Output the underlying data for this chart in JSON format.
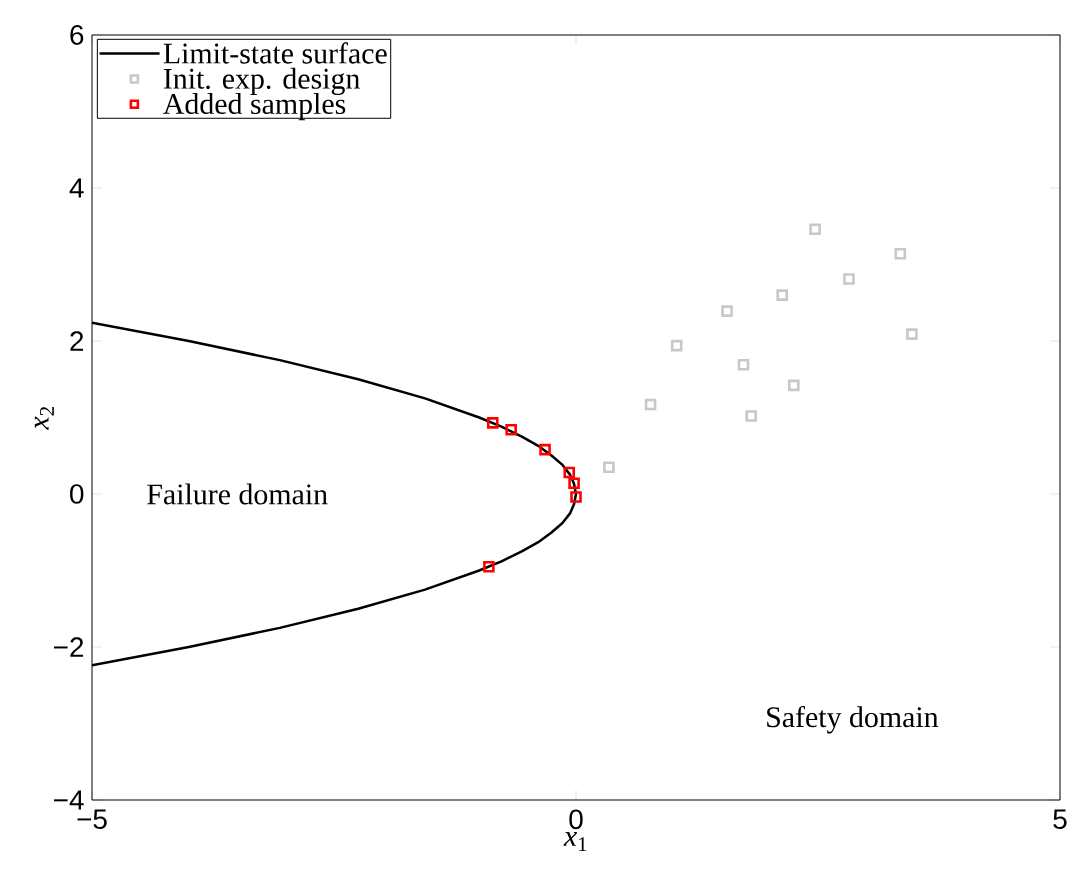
{
  "chart_data": {
    "type": "scatter",
    "xlabel": "*x*$_{1}$",
    "ylabel": "*x*$_{2}$",
    "xlim": [
      -5,
      5
    ],
    "ylim": [
      -4,
      6
    ],
    "xticks": [
      {
        "value": -5,
        "label": "−5"
      },
      0,
      5
    ],
    "yticks": [
      {
        "value": -4,
        "label": "−4"
      },
      {
        "value": -2,
        "label": "−2"
      },
      0,
      2,
      4,
      6
    ],
    "grid": false,
    "legend": "top left",
    "annotations": [
      "Failure domain",
      "Safety domain"
    ],
    "series": [
      {
        "name": "Limit-state surface",
        "type": "line",
        "color": "#000000",
        "marker": "none",
        "line_style": "solid",
        "x": [
          -5.0,
          -4.0,
          -3.06,
          -2.25,
          -1.56,
          -1.0,
          -0.77,
          -0.56,
          -0.39,
          -0.25,
          -0.14,
          -0.06,
          -0.02,
          0,
          -0.02,
          -0.06,
          -0.14,
          -0.25,
          -0.39,
          -0.56,
          -0.77,
          -1.0,
          -1.56,
          -2.25,
          -3.06,
          -4.0,
          -5.0
        ],
        "values": [
          -2.24,
          -2.0,
          -1.75,
          -1.5,
          -1.25,
          -1.0,
          -0.88,
          -0.75,
          -0.63,
          -0.5,
          -0.38,
          -0.25,
          -0.13,
          0,
          0.13,
          0.25,
          0.38,
          0.5,
          0.63,
          0.75,
          0.88,
          1.0,
          1.25,
          1.5,
          1.75,
          2.0,
          2.24
        ]
      },
      {
        "name": "Init. exp. design",
        "color": "#c8c8c8",
        "marker": "square",
        "x": [
          0.34,
          0.77,
          1.04,
          1.56,
          1.73,
          1.81,
          2.13,
          2.25,
          2.47,
          2.82,
          3.35,
          3.47
        ],
        "values": [
          0.35,
          1.17,
          1.94,
          2.39,
          1.69,
          1.02,
          2.6,
          1.42,
          3.46,
          2.81,
          3.14,
          2.09
        ]
      },
      {
        "name": "Added samples",
        "color": "#ff0000",
        "marker": "square",
        "x": [
          -0.86,
          -0.67,
          -0.32,
          -0.07,
          -0.02,
          0.0,
          -0.9
        ],
        "values": [
          0.93,
          0.84,
          0.58,
          0.28,
          0.14,
          -0.04,
          -0.95
        ]
      }
    ]
  }
}
